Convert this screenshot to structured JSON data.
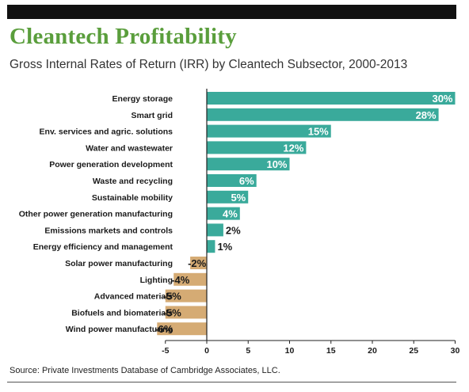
{
  "header": {
    "title": "Cleantech Profitability",
    "subtitle": "Gross Internal Rates of Return (IRR) by Cleantech Subsector, 2000-2013"
  },
  "footer": {
    "source": "Source: Private Investments Database of Cambridge Associates, LLC."
  },
  "colors": {
    "positive_bar": "#3aaa9b",
    "negative_bar": "#d5ab74",
    "title": "#5a9e3c",
    "axis": "#222222"
  },
  "chart_data": {
    "type": "bar",
    "orientation": "horizontal",
    "categories": [
      "Energy storage",
      "Smart grid",
      "Env. services and agric. solutions",
      "Water and wastewater",
      "Power generation development",
      "Waste and recycling",
      "Sustainable mobility",
      "Other power generation manufacturing",
      "Emissions markets and controls",
      "Energy efficiency and management",
      "Solar power manufacturing",
      "Lighting",
      "Advanced materials",
      "Biofuels and biomaterials",
      "Wind power manufacturing"
    ],
    "values": [
      30,
      28,
      15,
      12,
      10,
      6,
      5,
      4,
      2,
      1,
      -2,
      -4,
      -5,
      -5,
      -6
    ],
    "value_labels": [
      "30%",
      "28%",
      "15%",
      "12%",
      "10%",
      "6%",
      "5%",
      "4%",
      "2%",
      "1%",
      "-2%",
      "-4%",
      "-5%",
      "-5%",
      "-6%"
    ],
    "xlim": [
      -5,
      30
    ],
    "xticks": [
      -5,
      0,
      5,
      10,
      15,
      20,
      25,
      30
    ],
    "xtick_labels": [
      "-5",
      "0",
      "5",
      "10",
      "15",
      "20",
      "25",
      "30"
    ],
    "xlabel": "",
    "ylabel": "",
    "grid": false,
    "legend": "none"
  }
}
